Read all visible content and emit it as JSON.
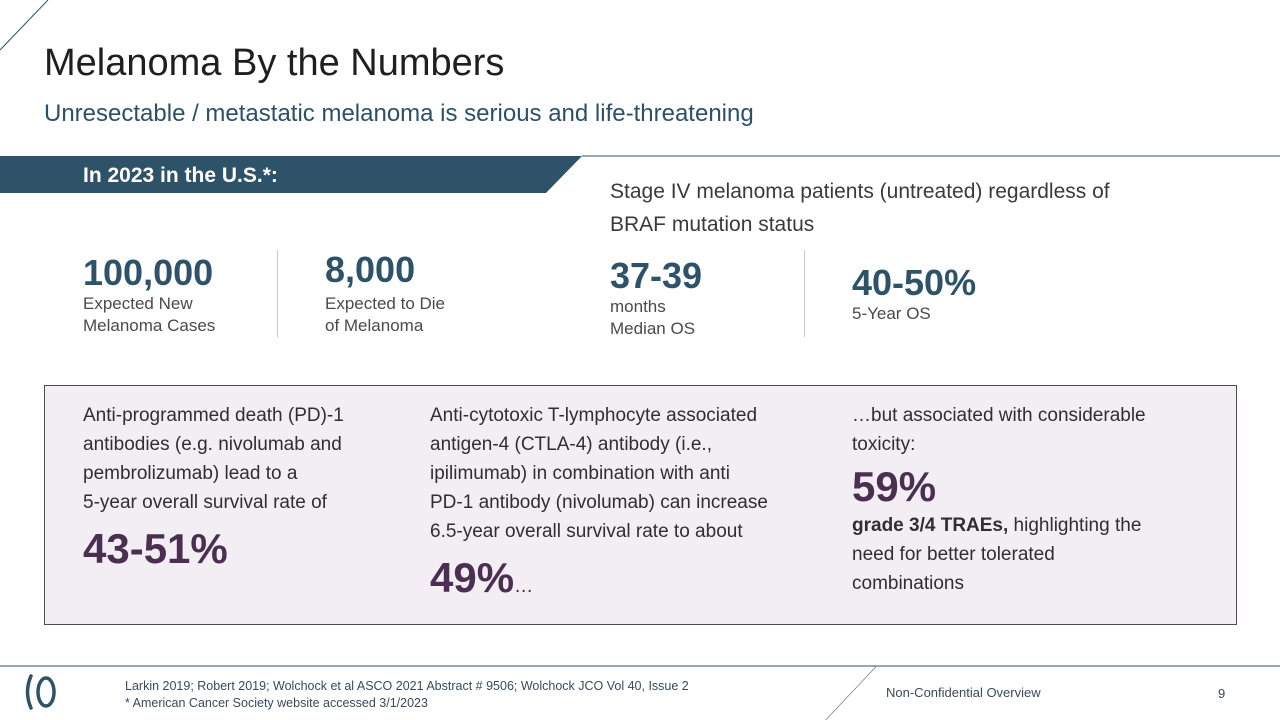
{
  "header": {
    "title": "Melanoma By the Numbers",
    "subtitle": "Unresectable / metastatic melanoma is serious and life-threatening"
  },
  "banner": {
    "text": "In 2023 in the U.S.*:",
    "color": "#2e5369"
  },
  "stage_heading": {
    "line1": "Stage IV melanoma patients (untreated) regardless of",
    "line2": "BRAF mutation status"
  },
  "stats": [
    {
      "value": "100,000",
      "label_line1": "Expected New",
      "label_line2": "Melanoma Cases"
    },
    {
      "value": "8,000",
      "label_line1": "Expected to Die",
      "label_line2": "of Melanoma"
    },
    {
      "value": "37-39",
      "label_line1": "months",
      "label_line2": "Median OS"
    },
    {
      "value": "40-50%",
      "label_line1": "5-Year OS",
      "label_line2": ""
    }
  ],
  "info_columns": {
    "col1": {
      "lines": [
        "Anti-programmed death (PD)-1",
        "antibodies (e.g. nivolumab and",
        "pembrolizumab) lead to a",
        "5-year overall survival rate of"
      ],
      "percent": "43-51%"
    },
    "col2": {
      "lines": [
        "Anti-cytotoxic T-lymphocyte associated",
        "antigen-4 (CTLA-4) antibody (i.e.,",
        "ipilimumab) in combination with anti",
        "PD-1 antibody (nivolumab) can increase",
        "6.5-year overall survival rate to about"
      ],
      "percent": "49%",
      "suffix": "…"
    },
    "col3": {
      "lines": [
        "…but associated with considerable",
        "toxicity:"
      ],
      "percent": "59%",
      "bold_text": "grade 3/4 TRAEs,",
      "rest_line1": " highlighting the",
      "rest_line2": "need for better tolerated",
      "rest_line3": "combinations"
    }
  },
  "footer": {
    "footnote_line1": "Larkin 2019; Robert 2019; Wolchock et al ASCO 2021 Abstract # 9506; Wolchock JCO Vol 40, Issue 2",
    "footnote_line2": "* American Cancer Society website accessed 3/1/2023",
    "confidentiality": "Non-Confidential Overview",
    "page_number": "9",
    "logo_icon": "company-logo-icon"
  }
}
